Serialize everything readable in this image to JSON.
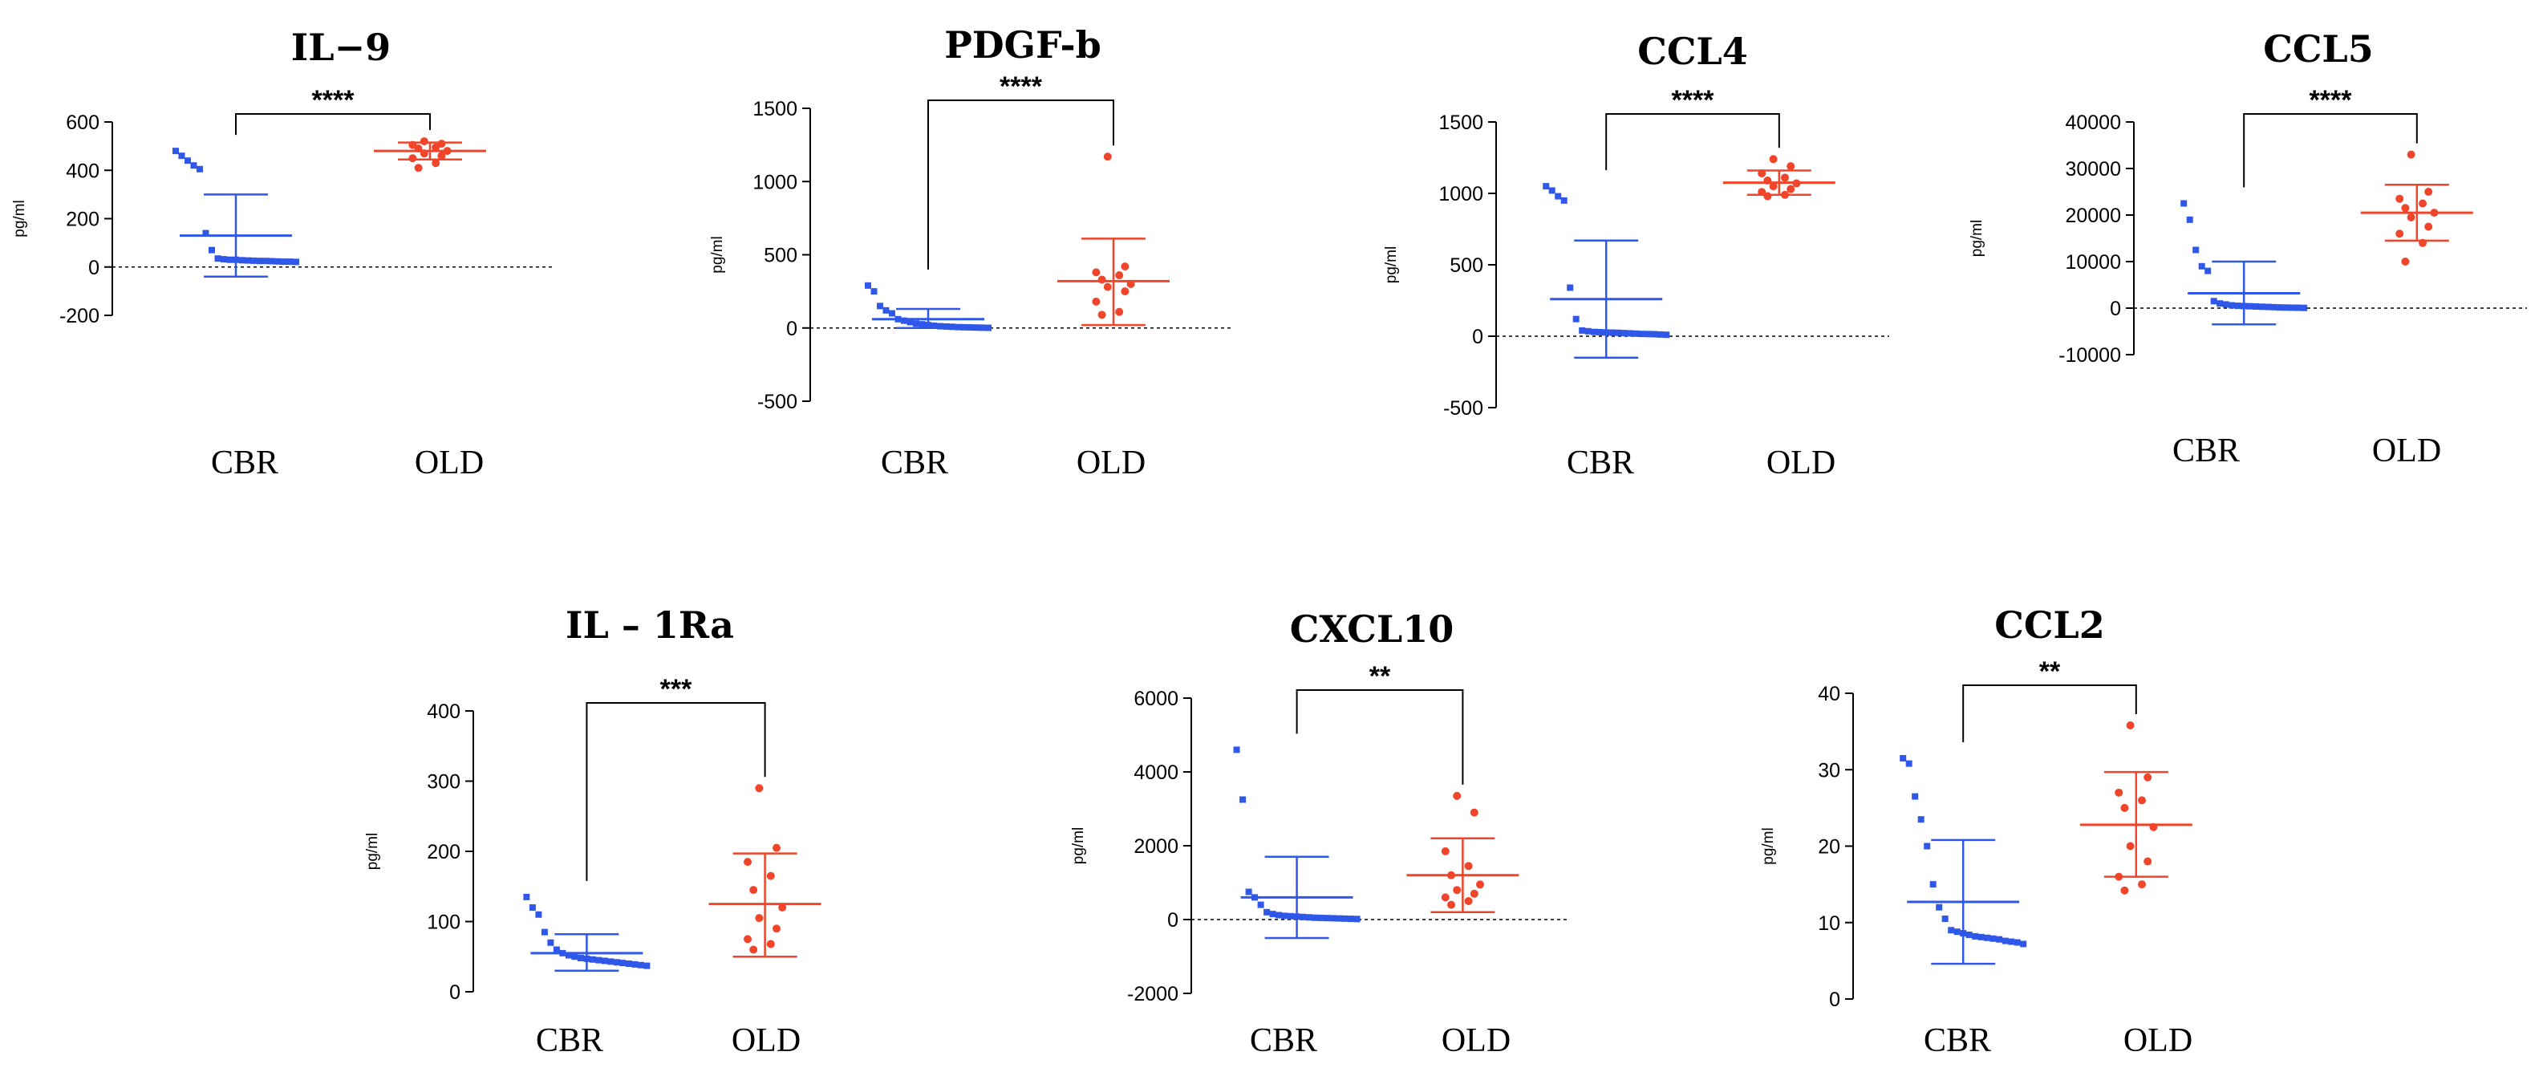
{
  "chart_data": [
    {
      "type": "scatter",
      "title": "IL−9",
      "ylabel": "pg/ml",
      "ylim": [
        -200,
        600
      ],
      "yticks": [
        600,
        400,
        200,
        0,
        -200
      ],
      "categories": [
        "CBR",
        "OLD"
      ],
      "significance": "****",
      "zero_line": true,
      "series": [
        {
          "name": "CBR",
          "color": "#2f57e8",
          "marker": "square",
          "mean": 130,
          "sd_low": -40,
          "sd_high": 300,
          "values": [
            480,
            460,
            440,
            420,
            405,
            140,
            70,
            35,
            32,
            30,
            30,
            28,
            27,
            26,
            25,
            25,
            24,
            23,
            22,
            22,
            21
          ]
        },
        {
          "name": "OLD",
          "color": "#f0452a",
          "marker": "circle",
          "mean": 480,
          "sd_low": 445,
          "sd_high": 515,
          "values": [
            520,
            510,
            505,
            495,
            490,
            480,
            470,
            460,
            450,
            430,
            410
          ]
        }
      ]
    },
    {
      "type": "scatter",
      "title": "PDGF-b",
      "ylabel": "pg/ml",
      "ylim": [
        -500,
        1500
      ],
      "yticks": [
        1500,
        1000,
        500,
        0,
        -500
      ],
      "categories": [
        "CBR",
        "OLD"
      ],
      "significance": "****",
      "zero_line": true,
      "series": [
        {
          "name": "CBR",
          "color": "#2f57e8",
          "marker": "square",
          "mean": 60,
          "sd_low": 0,
          "sd_high": 130,
          "values": [
            290,
            250,
            150,
            120,
            100,
            60,
            50,
            40,
            30,
            25,
            20,
            15,
            12,
            10,
            8,
            6,
            5,
            4,
            3,
            2,
            1
          ]
        },
        {
          "name": "OLD",
          "color": "#f0452a",
          "marker": "circle",
          "mean": 320,
          "sd_low": 20,
          "sd_high": 610,
          "values": [
            1170,
            420,
            380,
            360,
            330,
            300,
            280,
            250,
            180,
            110,
            90
          ]
        }
      ]
    },
    {
      "type": "scatter",
      "title": "CCL4",
      "ylabel": "pg/ml",
      "ylim": [
        -500,
        1500
      ],
      "yticks": [
        1500,
        1000,
        500,
        0,
        -500
      ],
      "categories": [
        "CBR",
        "OLD"
      ],
      "significance": "****",
      "zero_line": true,
      "series": [
        {
          "name": "CBR",
          "color": "#2f57e8",
          "marker": "square",
          "mean": 260,
          "sd_low": -150,
          "sd_high": 670,
          "values": [
            1050,
            1020,
            980,
            950,
            340,
            120,
            40,
            35,
            30,
            28,
            26,
            25,
            24,
            22,
            20,
            18,
            16,
            15,
            14,
            12,
            10
          ]
        },
        {
          "name": "OLD",
          "color": "#f0452a",
          "marker": "circle",
          "mean": 1075,
          "sd_low": 990,
          "sd_high": 1160,
          "values": [
            1240,
            1190,
            1140,
            1110,
            1090,
            1070,
            1050,
            1030,
            1010,
            990,
            980
          ]
        }
      ]
    },
    {
      "type": "scatter",
      "title": "CCL5",
      "ylabel": "pg/ml",
      "ylim": [
        -10000,
        40000
      ],
      "yticks": [
        40000,
        30000,
        20000,
        10000,
        0,
        -10000
      ],
      "categories": [
        "CBR",
        "OLD"
      ],
      "significance": "****",
      "zero_line": true,
      "series": [
        {
          "name": "CBR",
          "color": "#2f57e8",
          "marker": "square",
          "mean": 3200,
          "sd_low": -3500,
          "sd_high": 10000,
          "values": [
            22500,
            19000,
            12500,
            9000,
            8000,
            1500,
            1000,
            800,
            600,
            500,
            450,
            400,
            350,
            300,
            250,
            200,
            150,
            120,
            100,
            80,
            50
          ]
        },
        {
          "name": "OLD",
          "color": "#f0452a",
          "marker": "circle",
          "mean": 20500,
          "sd_low": 14500,
          "sd_high": 26500,
          "values": [
            33000,
            25000,
            23500,
            22500,
            21500,
            20500,
            19500,
            17500,
            16000,
            14000,
            10000
          ]
        }
      ]
    },
    {
      "type": "scatter",
      "title": "IL – 1Ra",
      "ylabel": "pg/ml",
      "ylim": [
        0,
        400
      ],
      "yticks": [
        400,
        300,
        200,
        100,
        0
      ],
      "categories": [
        "CBR",
        "OLD"
      ],
      "significance": "***",
      "zero_line": false,
      "series": [
        {
          "name": "CBR",
          "color": "#2f57e8",
          "marker": "square",
          "mean": 55,
          "sd_low": 30,
          "sd_high": 82,
          "values": [
            135,
            120,
            110,
            85,
            70,
            60,
            55,
            52,
            50,
            48,
            47,
            46,
            45,
            44,
            43,
            42,
            41,
            40,
            39,
            38,
            37
          ]
        },
        {
          "name": "OLD",
          "color": "#f0452a",
          "marker": "circle",
          "mean": 125,
          "sd_low": 50,
          "sd_high": 197,
          "values": [
            290,
            205,
            185,
            165,
            145,
            120,
            105,
            90,
            75,
            68,
            60
          ]
        }
      ]
    },
    {
      "type": "scatter",
      "title": "CXCL10",
      "ylabel": "pg/ml",
      "ylim": [
        -2000,
        6000
      ],
      "yticks": [
        6000,
        4000,
        2000,
        0,
        -2000
      ],
      "categories": [
        "CBR",
        "OLD"
      ],
      "significance": "**",
      "zero_line": true,
      "series": [
        {
          "name": "CBR",
          "color": "#2f57e8",
          "marker": "square",
          "mean": 600,
          "sd_low": -500,
          "sd_high": 1700,
          "values": [
            4600,
            3250,
            750,
            600,
            400,
            200,
            150,
            120,
            100,
            90,
            80,
            70,
            60,
            50,
            45,
            40,
            35,
            30,
            25,
            20,
            15
          ]
        },
        {
          "name": "OLD",
          "color": "#f0452a",
          "marker": "circle",
          "mean": 1200,
          "sd_low": 200,
          "sd_high": 2200,
          "values": [
            3350,
            2900,
            1850,
            1450,
            1200,
            950,
            800,
            700,
            600,
            500,
            400
          ]
        }
      ]
    },
    {
      "type": "scatter",
      "title": "CCL2",
      "ylabel": "pg/ml",
      "ylim": [
        0,
        40
      ],
      "yticks": [
        40,
        30,
        20,
        10,
        0
      ],
      "categories": [
        "CBR",
        "OLD"
      ],
      "significance": "**",
      "zero_line": false,
      "series": [
        {
          "name": "CBR",
          "color": "#2f57e8",
          "marker": "square",
          "mean": 12.7,
          "sd_low": 4.6,
          "sd_high": 20.8,
          "values": [
            31.5,
            30.8,
            26.5,
            23.5,
            20,
            15,
            12,
            10.5,
            9,
            8.8,
            8.6,
            8.4,
            8.2,
            8.1,
            8,
            7.9,
            7.8,
            7.6,
            7.5,
            7.4,
            7.2
          ]
        },
        {
          "name": "OLD",
          "color": "#f0452a",
          "marker": "circle",
          "mean": 22.8,
          "sd_low": 16,
          "sd_high": 29.7,
          "values": [
            35.8,
            29,
            27,
            26,
            25,
            22.5,
            20,
            18,
            16,
            15,
            14.2
          ]
        }
      ]
    }
  ]
}
